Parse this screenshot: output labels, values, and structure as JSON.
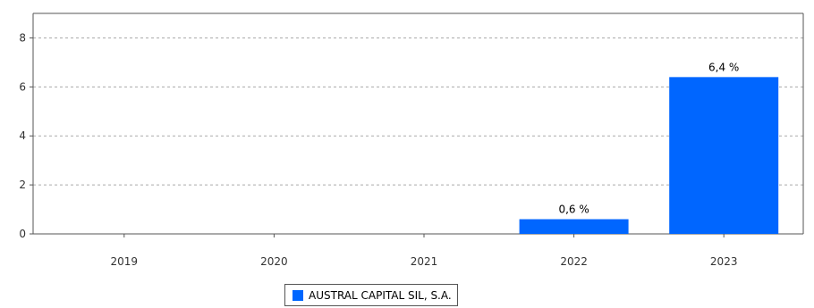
{
  "chart_data": {
    "type": "bar",
    "categories": [
      "2019",
      "2020",
      "2021",
      "2022",
      "2023"
    ],
    "series": [
      {
        "name": "AUSTRAL CAPITAL SIL, S.A.",
        "values": [
          0,
          0,
          0,
          0.6,
          6.4
        ],
        "data_labels": [
          "",
          "",
          "",
          "0,6 %",
          "6,4 %"
        ],
        "color": "#0066ff"
      }
    ],
    "ylim": [
      0,
      9
    ],
    "y_ticks": [
      "0",
      "2",
      "4",
      "6",
      "8"
    ],
    "grid": true,
    "legend_position": "bottom-center"
  }
}
